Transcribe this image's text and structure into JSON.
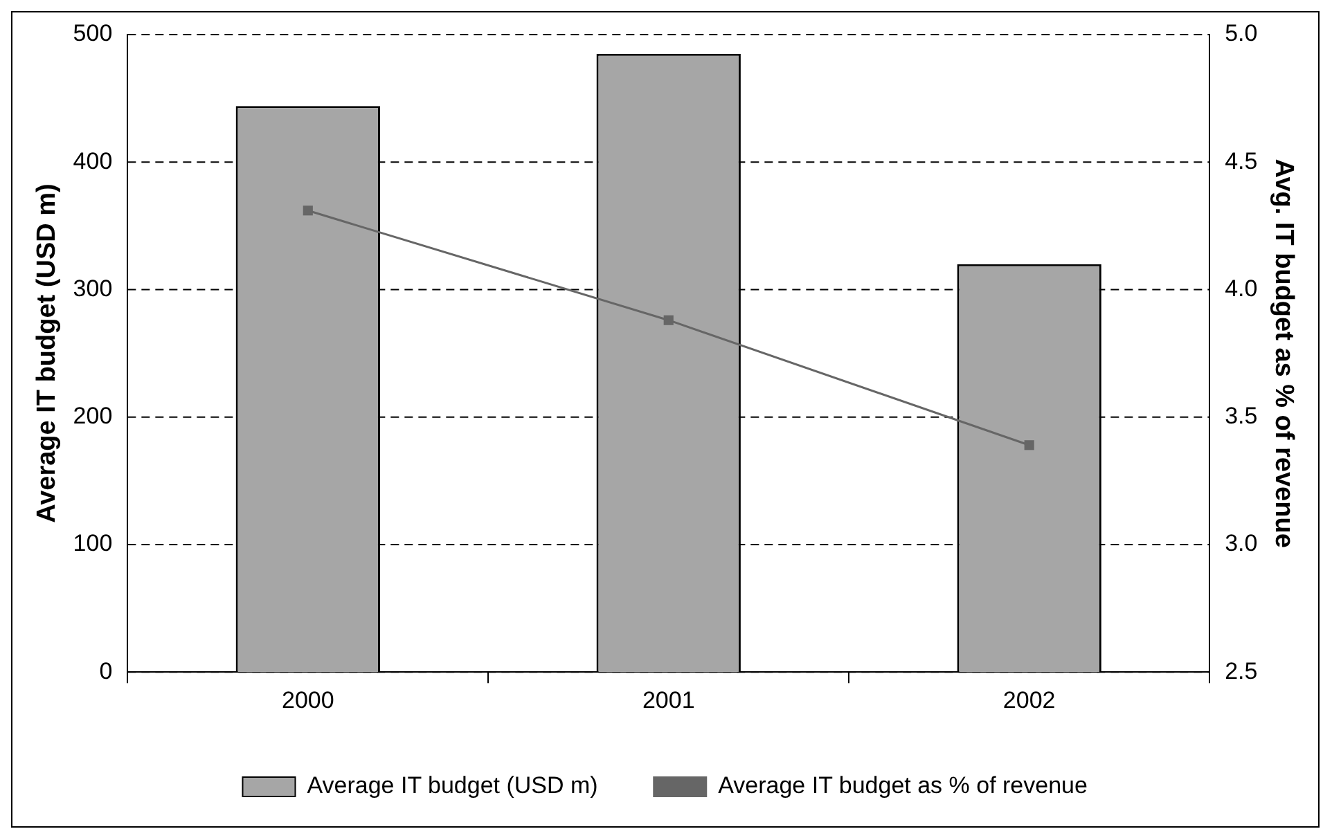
{
  "chart_data": {
    "type": "bar",
    "categories": [
      "2000",
      "2001",
      "2002"
    ],
    "series": [
      {
        "name": "Average IT budget (USD m)",
        "color": "#a6a6a6",
        "values": [
          444,
          485,
          320
        ]
      },
      {
        "name": "Average IT budget as % of revenue",
        "type": "line",
        "axis": "y2",
        "color": "#666666",
        "values": [
          4.31,
          3.88,
          3.39
        ]
      }
    ],
    "ylabel": "Average IT budget (USD m)",
    "y2label": "Avg. IT budget as % of revenue",
    "ylim": [
      0,
      500
    ],
    "yticks": [
      0,
      100,
      200,
      300,
      400,
      500
    ],
    "y2lim": [
      2.5,
      5.0
    ],
    "y2ticks": [
      {
        "value": 2.5,
        "label": "2.5"
      },
      {
        "value": 3.0,
        "label": "3.0"
      },
      {
        "value": 3.5,
        "label": "3.5"
      },
      {
        "value": 4.0,
        "label": "4.0"
      },
      {
        "value": 4.5,
        "label": "4.5"
      },
      {
        "value": 5.0,
        "label": "5.0"
      }
    ],
    "grid": "y",
    "legend": "bottom",
    "marker": "square",
    "line_style": "solid"
  }
}
